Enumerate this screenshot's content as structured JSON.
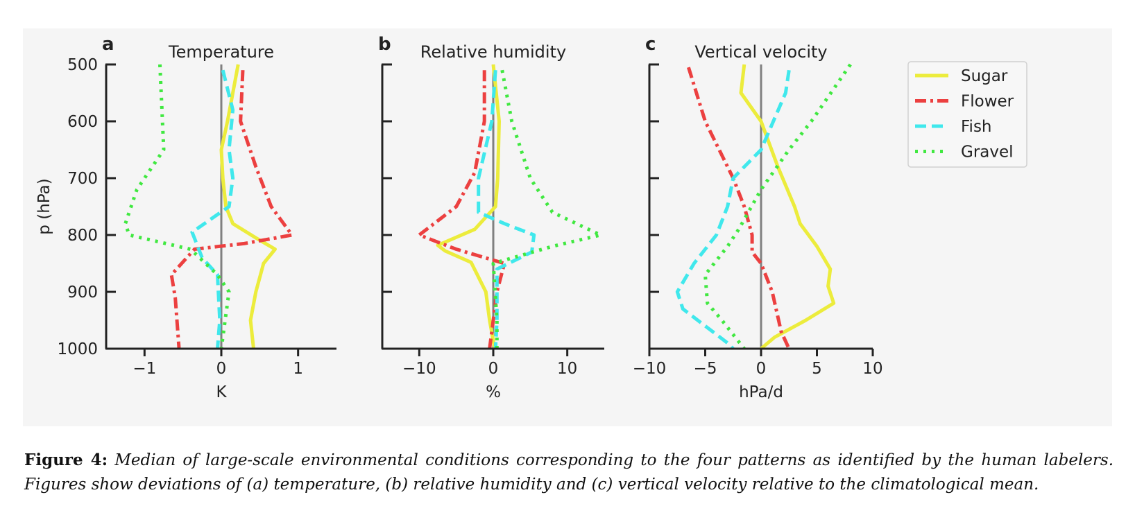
{
  "chart_data": [
    {
      "panel_letter": "a",
      "type": "line",
      "title": "Temperature",
      "xlabel": "K",
      "ylabel": "p (hPa)",
      "xlim": [
        -1.5,
        1.5
      ],
      "xticks": [
        -1,
        0,
        1
      ],
      "xtick_labels": [
        "−1",
        "0",
        "1"
      ],
      "ylim": [
        1000,
        500
      ],
      "yticks": [
        500,
        600,
        700,
        800,
        900,
        1000
      ],
      "ytick_labels": [
        "500",
        "600",
        "700",
        "800",
        "900",
        "1000"
      ],
      "grid": false,
      "zero_line": true,
      "series": [
        {
          "name": "Sugar",
          "color": "#ecec3c",
          "style": "solid",
          "points": [
            [
              0.22,
              500
            ],
            [
              0.15,
              550
            ],
            [
              0.08,
              600
            ],
            [
              0.0,
              650
            ],
            [
              0.02,
              700
            ],
            [
              0.06,
              750
            ],
            [
              0.15,
              780
            ],
            [
              0.45,
              805
            ],
            [
              0.7,
              825
            ],
            [
              0.55,
              850
            ],
            [
              0.45,
              900
            ],
            [
              0.38,
              950
            ],
            [
              0.42,
              1000
            ]
          ]
        },
        {
          "name": "Flower",
          "color": "#ec4040",
          "style": "dashdot",
          "points": [
            [
              0.28,
              510
            ],
            [
              0.25,
              600
            ],
            [
              0.45,
              680
            ],
            [
              0.65,
              750
            ],
            [
              0.92,
              800
            ],
            [
              0.3,
              815
            ],
            [
              -0.35,
              825
            ],
            [
              -0.65,
              870
            ],
            [
              -0.6,
              910
            ],
            [
              -0.55,
              1000
            ]
          ]
        },
        {
          "name": "Fish",
          "color": "#40e8ec",
          "style": "dashed",
          "points": [
            [
              0.02,
              510
            ],
            [
              0.15,
              580
            ],
            [
              0.1,
              650
            ],
            [
              0.15,
              700
            ],
            [
              0.1,
              750
            ],
            [
              -0.38,
              795
            ],
            [
              -0.25,
              840
            ],
            [
              -0.05,
              870
            ],
            [
              -0.02,
              950
            ],
            [
              -0.05,
              1000
            ]
          ]
        },
        {
          "name": "Gravel",
          "color": "#40e840",
          "style": "dotted",
          "points": [
            [
              -0.8,
              500
            ],
            [
              -0.75,
              650
            ],
            [
              -1.1,
              720
            ],
            [
              -1.25,
              780
            ],
            [
              -1.2,
              800
            ],
            [
              -0.4,
              825
            ],
            [
              -0.05,
              870
            ],
            [
              0.1,
              900
            ],
            [
              0.05,
              950
            ],
            [
              0.0,
              1000
            ]
          ]
        }
      ]
    },
    {
      "panel_letter": "b",
      "type": "line",
      "title": "Relative humidity",
      "xlabel": "%",
      "ylabel": "",
      "xlim": [
        -15,
        15
      ],
      "xticks": [
        -10,
        0,
        10
      ],
      "xtick_labels": [
        "−10",
        "0",
        "10"
      ],
      "ylim": [
        1000,
        500
      ],
      "yticks": [
        500,
        600,
        700,
        800,
        900,
        1000
      ],
      "ytick_labels": [],
      "grid": false,
      "zero_line": true,
      "series": [
        {
          "name": "Sugar",
          "color": "#ecec3c",
          "style": "solid",
          "points": [
            [
              0.0,
              500
            ],
            [
              0.8,
              600
            ],
            [
              0.6,
              700
            ],
            [
              0.3,
              750
            ],
            [
              -2.5,
              790
            ],
            [
              -7.5,
              818
            ],
            [
              -6.5,
              828
            ],
            [
              -3,
              848
            ],
            [
              -1,
              900
            ],
            [
              -0.5,
              950
            ],
            [
              0.2,
              1000
            ]
          ]
        },
        {
          "name": "Flower",
          "color": "#ec4040",
          "style": "dashdot",
          "points": [
            [
              -1.2,
              510
            ],
            [
              -1.2,
              600
            ],
            [
              -2.5,
              690
            ],
            [
              -5,
              750
            ],
            [
              -10,
              800
            ],
            [
              -5,
              825
            ],
            [
              1.5,
              850
            ],
            [
              0.5,
              900
            ],
            [
              0,
              950
            ],
            [
              -0.5,
              1000
            ]
          ]
        },
        {
          "name": "Fish",
          "color": "#40e8ec",
          "style": "dashed",
          "points": [
            [
              0.3,
              510
            ],
            [
              -0.2,
              600
            ],
            [
              -2,
              700
            ],
            [
              -2,
              760
            ],
            [
              1.5,
              780
            ],
            [
              5.5,
              800
            ],
            [
              5.2,
              830
            ],
            [
              0.5,
              860
            ],
            [
              0.5,
              950
            ],
            [
              0.3,
              1000
            ]
          ]
        },
        {
          "name": "Gravel",
          "color": "#40e840",
          "style": "dotted",
          "points": [
            [
              1.2,
              510
            ],
            [
              2.5,
              600
            ],
            [
              5,
              700
            ],
            [
              8,
              760
            ],
            [
              14.5,
              800
            ],
            [
              8,
              820
            ],
            [
              0,
              850
            ],
            [
              0.5,
              950
            ],
            [
              0.5,
              1000
            ]
          ]
        }
      ]
    },
    {
      "panel_letter": "c",
      "type": "line",
      "title": "Vertical velocity",
      "xlabel": "hPa/d",
      "ylabel": "",
      "xlim": [
        -10,
        10
      ],
      "xticks": [
        -10,
        -5,
        0,
        5,
        10
      ],
      "xtick_labels": [
        "−10",
        "−5",
        "0",
        "5",
        "10"
      ],
      "ylim": [
        1000,
        500
      ],
      "yticks": [
        500,
        600,
        700,
        800,
        900,
        1000
      ],
      "ytick_labels": [],
      "grid": false,
      "zero_line": true,
      "series": [
        {
          "name": "Sugar",
          "color": "#ecec3c",
          "style": "solid",
          "points": [
            [
              -1.5,
              500
            ],
            [
              -1.8,
              550
            ],
            [
              0,
              600
            ],
            [
              1.5,
              680
            ],
            [
              3,
              750
            ],
            [
              3.5,
              780
            ],
            [
              5,
              820
            ],
            [
              6.2,
              860
            ],
            [
              6,
              890
            ],
            [
              6.5,
              920
            ],
            [
              4,
              950
            ],
            [
              1.2,
              980
            ],
            [
              0,
              1000
            ]
          ]
        },
        {
          "name": "Flower",
          "color": "#ec4040",
          "style": "dashdot",
          "points": [
            [
              -6.5,
              505
            ],
            [
              -5,
              600
            ],
            [
              -2.5,
              700
            ],
            [
              -1.5,
              750
            ],
            [
              -0.8,
              800
            ],
            [
              -0.8,
              830
            ],
            [
              0,
              850
            ],
            [
              1,
              900
            ],
            [
              1.8,
              970
            ],
            [
              2.5,
              1000
            ]
          ]
        },
        {
          "name": "Fish",
          "color": "#40e8ec",
          "style": "dashed",
          "points": [
            [
              2.5,
              510
            ],
            [
              2.2,
              550
            ],
            [
              0,
              650
            ],
            [
              -2.5,
              700
            ],
            [
              -3,
              750
            ],
            [
              -4,
              800
            ],
            [
              -6,
              850
            ],
            [
              -7.5,
              900
            ],
            [
              -7,
              930
            ],
            [
              -5,
              960
            ],
            [
              -3,
              990
            ],
            [
              -2.5,
              1000
            ]
          ]
        },
        {
          "name": "Gravel",
          "color": "#40e840",
          "style": "dotted",
          "points": [
            [
              8,
              500
            ],
            [
              4.5,
              600
            ],
            [
              2.5,
              650
            ],
            [
              0,
              720
            ],
            [
              -2,
              790
            ],
            [
              -3,
              820
            ],
            [
              -5,
              870
            ],
            [
              -4.8,
              920
            ],
            [
              -3.5,
              950
            ],
            [
              -1.5,
              1000
            ]
          ]
        }
      ]
    }
  ],
  "legend": {
    "position": "top-right",
    "entries": [
      {
        "label": "Sugar",
        "color": "#ecec3c",
        "style": "solid"
      },
      {
        "label": "Flower",
        "color": "#ec4040",
        "style": "dashdot"
      },
      {
        "label": "Fish",
        "color": "#40e8ec",
        "style": "dashed"
      },
      {
        "label": "Gravel",
        "color": "#40e840",
        "style": "dotted"
      }
    ]
  },
  "colors": {
    "panel_background": "#f5f5f5",
    "axis": "#222222",
    "zero_line": "#808080"
  },
  "caption": {
    "label": "Figure 4:",
    "text": "Median of large-scale environmental conditions corresponding to the four patterns as identified by the human labelers. Figures show deviations of (a) temperature, (b) relative humidity and (c) vertical velocity relative to the climatological mean."
  }
}
